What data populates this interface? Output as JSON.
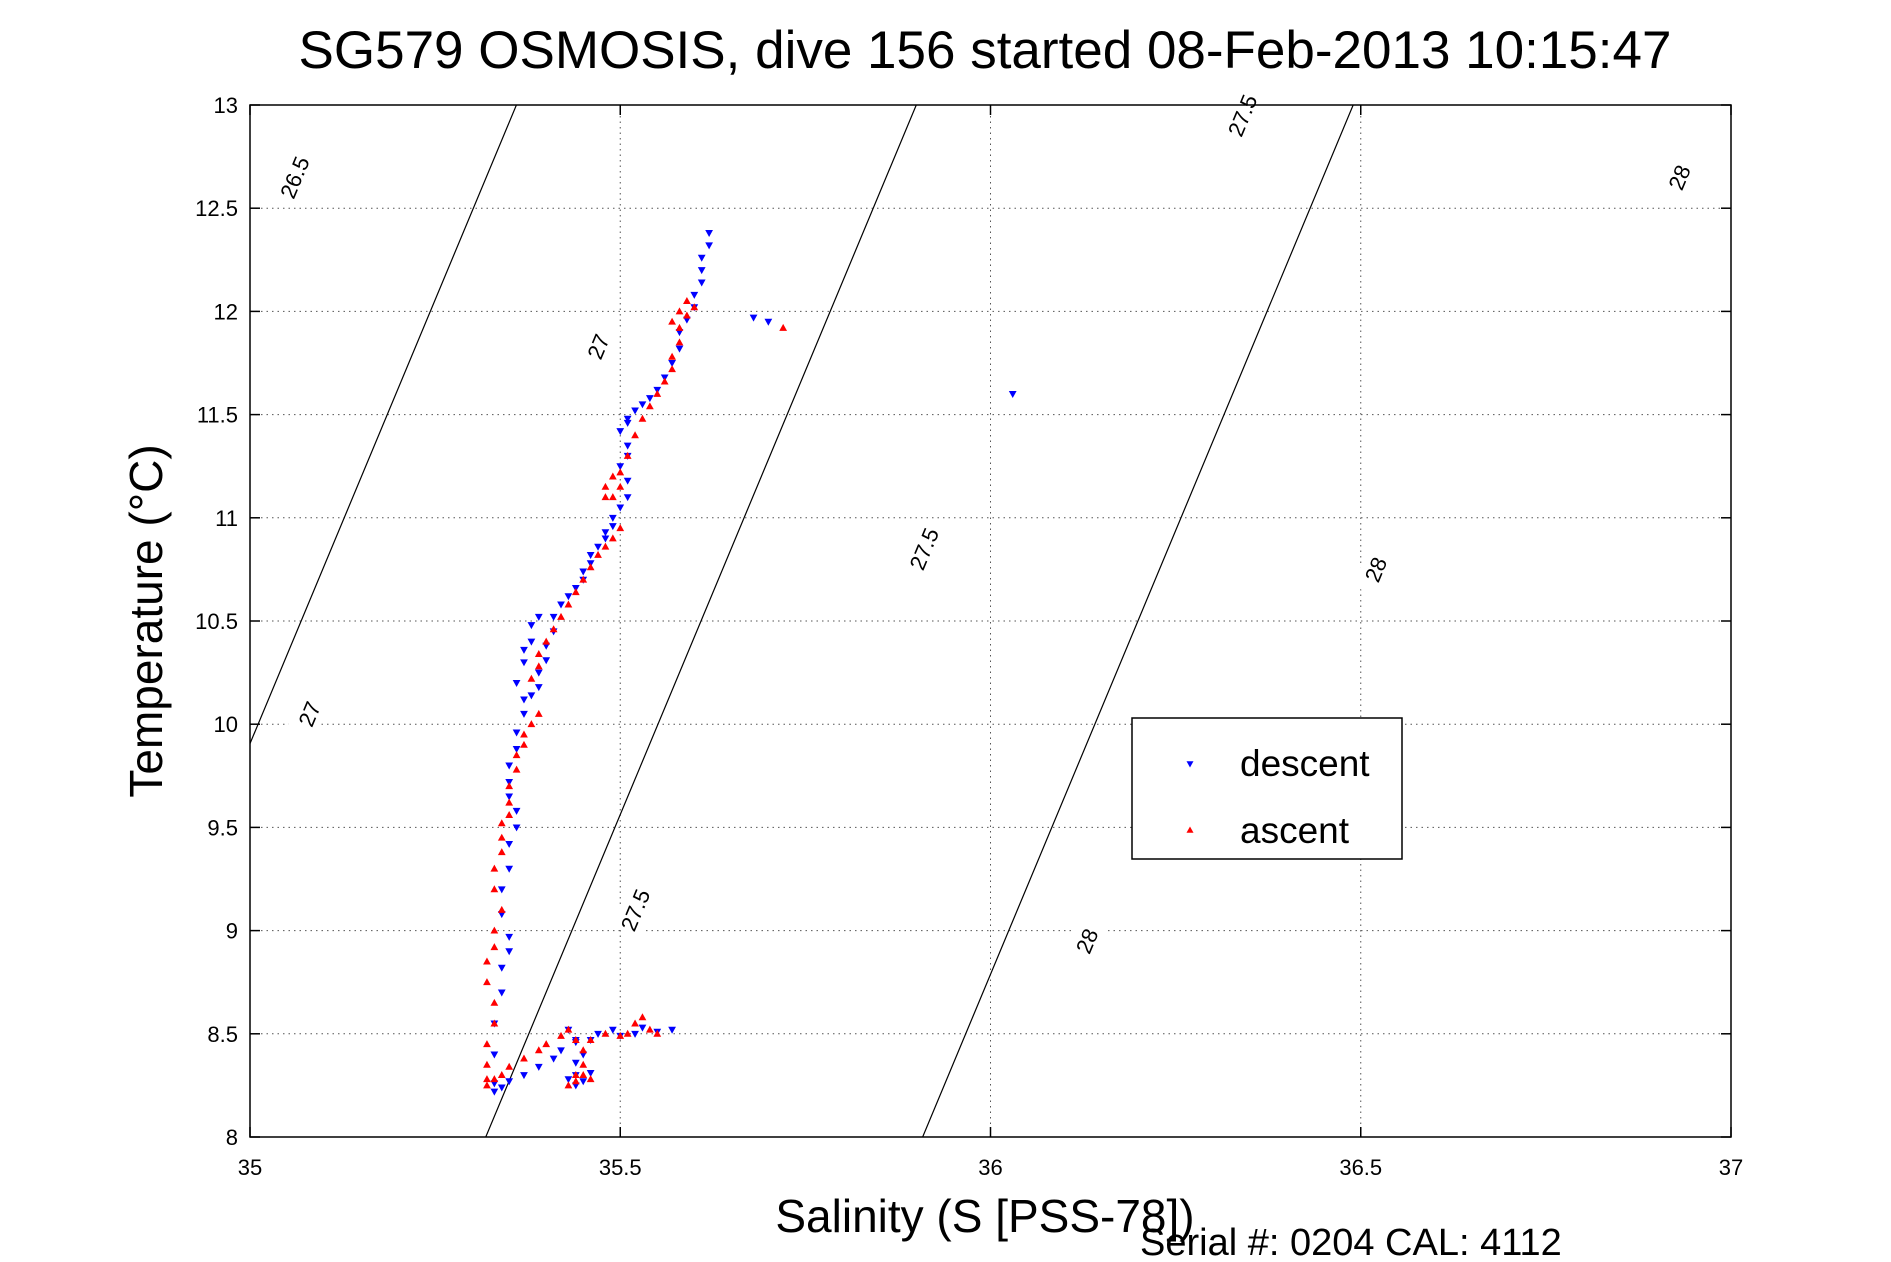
{
  "chart_data": {
    "type": "scatter",
    "title": "SG579 OSMOSIS, dive 156 started 08-Feb-2013 10:15:47",
    "xlabel": "Salinity (S [PSS-78])",
    "ylabel": "Temperature (°C)",
    "footer": "Serial #: 0204  CAL: 4112",
    "xlim": [
      35,
      37
    ],
    "ylim": [
      8,
      13
    ],
    "grid": true,
    "legend_position": "lower-right",
    "x_ticks": [
      35,
      35.5,
      36,
      36.5,
      37
    ],
    "x_tick_labels": [
      "35",
      "35.5",
      "36",
      "36.5",
      "37"
    ],
    "y_ticks": [
      8,
      8.5,
      9,
      9.5,
      10,
      10.5,
      11,
      11.5,
      12,
      12.5,
      13
    ],
    "y_tick_labels": [
      "8",
      "8.5",
      "9",
      "9.5",
      "10",
      "10.5",
      "11",
      "11.5",
      "12",
      "12.5",
      "13"
    ],
    "density_contours": [
      {
        "label": "26.5",
        "x0": 34.8,
        "y0": 12.4,
        "slope": 8.6,
        "label_points": [
          [
            35.06,
            12.65
          ]
        ]
      },
      {
        "label": "27",
        "x0": 35.29,
        "y0": 12.4,
        "slope": 8.6,
        "label_points": [
          [
            35.08,
            10.05
          ],
          [
            35.47,
            11.83
          ]
        ]
      },
      {
        "label": "27.5",
        "x0": 35.83,
        "y0": 12.4,
        "slope": 8.6,
        "label_points": [
          [
            35.52,
            9.1
          ],
          [
            35.91,
            10.85
          ],
          [
            36.34,
            12.95
          ]
        ]
      },
      {
        "label": "28",
        "x0": 36.42,
        "y0": 12.4,
        "slope": 8.6,
        "label_points": [
          [
            36.13,
            8.95
          ],
          [
            36.52,
            10.75
          ],
          [
            36.93,
            12.65
          ]
        ]
      }
    ],
    "series": [
      {
        "name": "descent",
        "color": "#0000ff",
        "marker": "triangle-down",
        "x": [
          35.33,
          35.34,
          35.35,
          35.37,
          35.39,
          35.41,
          35.42,
          35.44,
          35.43,
          35.44,
          35.45,
          35.46,
          35.47,
          35.49,
          35.5,
          35.52,
          35.53,
          35.55,
          35.57,
          35.44,
          35.45,
          35.44,
          35.43,
          35.44,
          35.46,
          35.33,
          35.33,
          35.33,
          35.34,
          35.34,
          35.35,
          35.35,
          35.34,
          35.34,
          35.35,
          35.35,
          35.36,
          35.36,
          35.35,
          35.35,
          35.35,
          35.36,
          35.36,
          35.37,
          35.37,
          35.36,
          35.37,
          35.37,
          35.38,
          35.38,
          35.39,
          35.38,
          35.39,
          35.39,
          35.4,
          35.4,
          35.41,
          35.41,
          35.42,
          35.43,
          35.44,
          35.45,
          35.45,
          35.46,
          35.46,
          35.47,
          35.48,
          35.48,
          35.49,
          35.49,
          35.5,
          35.51,
          35.51,
          35.5,
          35.51,
          35.51,
          35.5,
          35.51,
          35.51,
          35.52,
          35.53,
          35.54,
          35.55,
          35.56,
          35.57,
          35.58,
          35.58,
          35.59,
          35.6,
          35.6,
          35.61,
          35.61,
          35.61,
          35.62,
          35.62,
          35.68,
          35.7,
          36.03
        ],
        "y": [
          8.22,
          8.24,
          8.27,
          8.3,
          8.34,
          8.38,
          8.42,
          8.47,
          8.52,
          8.46,
          8.4,
          8.47,
          8.5,
          8.52,
          8.49,
          8.5,
          8.53,
          8.51,
          8.52,
          8.3,
          8.27,
          8.25,
          8.28,
          8.36,
          8.31,
          8.26,
          8.4,
          8.55,
          8.7,
          8.82,
          8.9,
          8.97,
          9.08,
          9.2,
          9.3,
          9.42,
          9.5,
          9.58,
          9.65,
          9.72,
          9.8,
          9.88,
          9.96,
          10.05,
          10.12,
          10.2,
          10.3,
          10.36,
          10.4,
          10.48,
          10.52,
          10.14,
          10.18,
          10.25,
          10.31,
          10.38,
          10.45,
          10.52,
          10.58,
          10.62,
          10.66,
          10.7,
          10.74,
          10.78,
          10.82,
          10.86,
          10.9,
          10.93,
          10.96,
          11.0,
          11.05,
          11.1,
          11.18,
          11.25,
          11.3,
          11.35,
          11.42,
          11.46,
          11.48,
          11.52,
          11.55,
          11.58,
          11.62,
          11.68,
          11.75,
          11.82,
          11.9,
          11.96,
          12.02,
          12.08,
          12.14,
          12.2,
          12.26,
          12.32,
          12.38,
          11.97,
          11.95,
          11.6
        ]
      },
      {
        "name": "ascent",
        "color": "#ff0000",
        "marker": "triangle-up",
        "x": [
          35.32,
          35.33,
          35.34,
          35.35,
          35.37,
          35.39,
          35.4,
          35.42,
          35.43,
          35.44,
          35.45,
          35.46,
          35.48,
          35.5,
          35.51,
          35.52,
          35.53,
          35.54,
          35.55,
          35.45,
          35.44,
          35.43,
          35.44,
          35.45,
          35.46,
          35.32,
          35.32,
          35.32,
          35.33,
          35.33,
          35.32,
          35.32,
          35.33,
          35.33,
          35.34,
          35.33,
          35.33,
          35.34,
          35.34,
          35.34,
          35.35,
          35.35,
          35.35,
          35.36,
          35.36,
          35.37,
          35.37,
          35.38,
          35.39,
          35.38,
          35.39,
          35.39,
          35.4,
          35.41,
          35.42,
          35.43,
          35.44,
          35.45,
          35.46,
          35.47,
          35.48,
          35.49,
          35.5,
          35.48,
          35.48,
          35.49,
          35.5,
          35.49,
          35.5,
          35.51,
          35.52,
          35.53,
          35.54,
          35.55,
          35.56,
          35.57,
          35.57,
          35.58,
          35.58,
          35.59,
          35.6,
          35.59,
          35.58,
          35.57,
          35.72
        ],
        "y": [
          8.25,
          8.28,
          8.3,
          8.34,
          8.38,
          8.42,
          8.45,
          8.49,
          8.52,
          8.47,
          8.42,
          8.47,
          8.5,
          8.49,
          8.5,
          8.55,
          8.58,
          8.52,
          8.5,
          8.3,
          8.27,
          8.25,
          8.3,
          8.35,
          8.28,
          8.28,
          8.35,
          8.45,
          8.55,
          8.65,
          8.75,
          8.85,
          8.92,
          9.0,
          9.1,
          9.2,
          9.3,
          9.38,
          9.45,
          9.52,
          9.56,
          9.62,
          9.7,
          9.78,
          9.85,
          9.9,
          9.95,
          10.0,
          10.05,
          10.22,
          10.28,
          10.34,
          10.4,
          10.46,
          10.52,
          10.58,
          10.64,
          10.7,
          10.76,
          10.82,
          10.86,
          10.9,
          10.95,
          11.1,
          11.15,
          11.2,
          11.15,
          11.1,
          11.22,
          11.3,
          11.4,
          11.48,
          11.54,
          11.6,
          11.66,
          11.72,
          11.78,
          11.85,
          11.92,
          11.98,
          12.02,
          12.05,
          12.0,
          11.95,
          11.92
        ]
      }
    ]
  }
}
